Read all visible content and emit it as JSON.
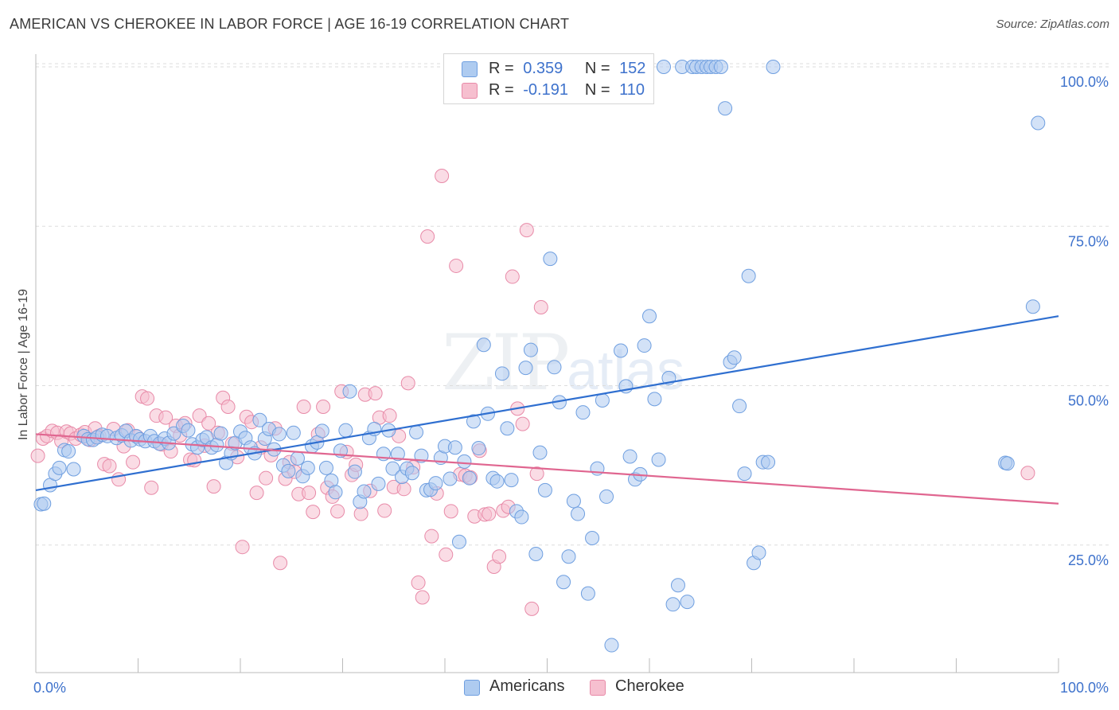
{
  "header": {
    "title": "AMERICAN VS CHEROKEE IN LABOR FORCE | AGE 16-19 CORRELATION CHART",
    "source": "Source: ZipAtlas.com"
  },
  "watermark": {
    "zip": "ZIP",
    "atlas": "atlas"
  },
  "legend": {
    "americans": {
      "r_label": "R =",
      "r_value": "0.359",
      "n_label": "N =",
      "n_value": "152"
    },
    "cherokee": {
      "r_label": "R =",
      "r_value": "-0.191",
      "n_label": "N =",
      "n_value": "110"
    }
  },
  "bottom_legend": {
    "americans": "Americans",
    "cherokee": "Cherokee"
  },
  "colors": {
    "americans_fill": "#aecbf0",
    "americans_stroke": "#6f9fe0",
    "americans_line": "#2f6fd0",
    "cherokee_fill": "#f6bfcf",
    "cherokee_stroke": "#e88aa8",
    "cherokee_line": "#e06690",
    "grid": "#dddddd",
    "axis_label": "#3e72cc"
  },
  "chart_data": {
    "type": "scatter",
    "title": "AMERICAN VS CHEROKEE IN LABOR FORCE | AGE 16-19 CORRELATION CHART",
    "xlabel": "",
    "ylabel": "In Labor Force | Age 16-19",
    "xlim": [
      0,
      100
    ],
    "ylim": [
      5,
      102
    ],
    "x_tick_labels": [
      "0.0%",
      "100.0%"
    ],
    "y_ticks": [
      25,
      50,
      75,
      100
    ],
    "y_tick_labels": [
      "25.0%",
      "50.0%",
      "75.0%",
      "100.0%"
    ],
    "grid": true,
    "legend_position": "top-center",
    "series": [
      {
        "name": "Americans",
        "r": 0.359,
        "n": 152,
        "trend": [
          [
            0,
            33.6
          ],
          [
            100,
            60.9
          ]
        ],
        "points": [
          [
            0.5,
            31.4
          ],
          [
            0.8,
            31.5
          ],
          [
            1.4,
            34.4
          ],
          [
            1.9,
            36.2
          ],
          [
            2.3,
            37.1
          ],
          [
            2.8,
            39.9
          ],
          [
            3.2,
            39.7
          ],
          [
            3.7,
            36.9
          ],
          [
            4.7,
            42.1
          ],
          [
            5.1,
            41.6
          ],
          [
            5.6,
            41.5
          ],
          [
            6.0,
            41.9
          ],
          [
            6.5,
            42.3
          ],
          [
            7.0,
            42.1
          ],
          [
            7.9,
            41.8
          ],
          [
            8.4,
            42.2
          ],
          [
            8.8,
            42.9
          ],
          [
            9.3,
            41.4
          ],
          [
            9.8,
            42.1
          ],
          [
            10.2,
            41.6
          ],
          [
            10.7,
            41.3
          ],
          [
            11.2,
            42.1
          ],
          [
            11.6,
            41.3
          ],
          [
            12.1,
            40.9
          ],
          [
            12.6,
            41.7
          ],
          [
            13.0,
            41.0
          ],
          [
            13.5,
            42.5
          ],
          [
            14.4,
            43.7
          ],
          [
            14.9,
            43.0
          ],
          [
            15.3,
            40.8
          ],
          [
            15.8,
            40.3
          ],
          [
            16.3,
            41.5
          ],
          [
            16.7,
            41.9
          ],
          [
            17.2,
            40.3
          ],
          [
            17.7,
            40.7
          ],
          [
            18.1,
            42.5
          ],
          [
            18.6,
            37.9
          ],
          [
            19.1,
            39.4
          ],
          [
            19.5,
            41.0
          ],
          [
            20.0,
            42.8
          ],
          [
            20.5,
            41.8
          ],
          [
            21.0,
            40.3
          ],
          [
            21.4,
            39.4
          ],
          [
            21.9,
            44.6
          ],
          [
            22.4,
            41.7
          ],
          [
            22.8,
            43.2
          ],
          [
            23.3,
            40.0
          ],
          [
            23.8,
            42.4
          ],
          [
            24.2,
            37.5
          ],
          [
            24.7,
            36.6
          ],
          [
            25.2,
            42.6
          ],
          [
            25.6,
            38.6
          ],
          [
            26.1,
            35.8
          ],
          [
            26.6,
            37.1
          ],
          [
            27.0,
            40.5
          ],
          [
            27.5,
            41.1
          ],
          [
            28.0,
            42.9
          ],
          [
            28.4,
            37.1
          ],
          [
            28.9,
            35.1
          ],
          [
            29.3,
            33.3
          ],
          [
            29.8,
            39.8
          ],
          [
            30.3,
            43.0
          ],
          [
            30.7,
            49.1
          ],
          [
            31.2,
            36.5
          ],
          [
            31.7,
            31.8
          ],
          [
            32.1,
            33.4
          ],
          [
            32.6,
            41.8
          ],
          [
            33.1,
            43.2
          ],
          [
            33.5,
            34.6
          ],
          [
            34.0,
            39.3
          ],
          [
            34.5,
            43.0
          ],
          [
            34.9,
            37.0
          ],
          [
            35.4,
            39.3
          ],
          [
            35.8,
            35.7
          ],
          [
            36.3,
            37.0
          ],
          [
            36.8,
            36.3
          ],
          [
            37.2,
            42.7
          ],
          [
            37.7,
            39.0
          ],
          [
            38.2,
            33.6
          ],
          [
            38.6,
            33.7
          ],
          [
            39.1,
            34.7
          ],
          [
            39.6,
            38.7
          ],
          [
            40.0,
            40.5
          ],
          [
            40.5,
            35.4
          ],
          [
            41.0,
            40.3
          ],
          [
            41.4,
            25.5
          ],
          [
            41.9,
            38.1
          ],
          [
            42.4,
            35.5
          ],
          [
            42.8,
            44.4
          ],
          [
            43.3,
            40.2
          ],
          [
            43.8,
            56.4
          ],
          [
            44.2,
            45.6
          ],
          [
            44.7,
            35.5
          ],
          [
            45.1,
            35.0
          ],
          [
            45.6,
            51.9
          ],
          [
            46.1,
            43.3
          ],
          [
            46.5,
            35.2
          ],
          [
            47.0,
            30.3
          ],
          [
            47.5,
            29.4
          ],
          [
            47.9,
            52.8
          ],
          [
            48.4,
            55.6
          ],
          [
            48.9,
            23.6
          ],
          [
            49.3,
            39.5
          ],
          [
            49.8,
            33.6
          ],
          [
            50.3,
            69.9
          ],
          [
            50.7,
            52.9
          ],
          [
            51.2,
            47.4
          ],
          [
            51.6,
            19.2
          ],
          [
            52.1,
            23.2
          ],
          [
            52.6,
            31.9
          ],
          [
            53.0,
            29.9
          ],
          [
            53.5,
            45.8
          ],
          [
            54.0,
            17.4
          ],
          [
            54.4,
            26.1
          ],
          [
            54.9,
            37.0
          ],
          [
            55.4,
            47.7
          ],
          [
            55.8,
            32.6
          ],
          [
            56.3,
            9.3
          ],
          [
            56.7,
            100.0
          ],
          [
            57.2,
            55.5
          ],
          [
            57.7,
            49.9
          ],
          [
            58.1,
            38.9
          ],
          [
            58.6,
            35.3
          ],
          [
            59.1,
            36.1
          ],
          [
            59.5,
            56.3
          ],
          [
            60.0,
            60.9
          ],
          [
            60.5,
            47.9
          ],
          [
            60.9,
            38.4
          ],
          [
            61.4,
            100.0
          ],
          [
            61.9,
            51.2
          ],
          [
            62.3,
            15.7
          ],
          [
            62.8,
            18.7
          ],
          [
            63.2,
            100.0
          ],
          [
            63.7,
            16.1
          ],
          [
            64.2,
            100.0
          ],
          [
            64.6,
            100.0
          ],
          [
            65.1,
            100.0
          ],
          [
            65.6,
            100.0
          ],
          [
            66.0,
            100.0
          ],
          [
            66.5,
            100.0
          ],
          [
            67.0,
            100.0
          ],
          [
            67.4,
            93.5
          ],
          [
            67.9,
            53.7
          ],
          [
            68.3,
            54.4
          ],
          [
            68.8,
            46.8
          ],
          [
            69.3,
            36.2
          ],
          [
            69.7,
            67.2
          ],
          [
            70.2,
            22.2
          ],
          [
            70.7,
            23.8
          ],
          [
            71.1,
            38.0
          ],
          [
            71.6,
            38.0
          ],
          [
            72.1,
            100.0
          ],
          [
            94.8,
            37.9
          ],
          [
            95.0,
            37.8
          ],
          [
            97.5,
            62.4
          ],
          [
            98.0,
            91.2
          ]
        ]
      },
      {
        "name": "Cherokee",
        "r": -0.191,
        "n": 110,
        "trend": [
          [
            0,
            42.4
          ],
          [
            100,
            31.5
          ]
        ],
        "points": [
          [
            0.2,
            39.0
          ],
          [
            0.7,
            41.7
          ],
          [
            1.1,
            42.1
          ],
          [
            1.6,
            42.9
          ],
          [
            2.1,
            42.6
          ],
          [
            2.5,
            41.3
          ],
          [
            3.0,
            42.8
          ],
          [
            3.4,
            42.5
          ],
          [
            3.9,
            41.7
          ],
          [
            4.4,
            42.3
          ],
          [
            4.8,
            42.7
          ],
          [
            5.3,
            41.5
          ],
          [
            5.8,
            43.3
          ],
          [
            6.2,
            42.1
          ],
          [
            6.7,
            37.7
          ],
          [
            7.2,
            37.4
          ],
          [
            7.6,
            43.2
          ],
          [
            8.1,
            35.3
          ],
          [
            8.6,
            40.5
          ],
          [
            9.0,
            43.0
          ],
          [
            9.5,
            38.0
          ],
          [
            9.9,
            42.0
          ],
          [
            10.4,
            48.3
          ],
          [
            10.9,
            48.0
          ],
          [
            11.3,
            34.0
          ],
          [
            11.8,
            45.3
          ],
          [
            12.3,
            40.8
          ],
          [
            12.7,
            45.0
          ],
          [
            13.2,
            39.7
          ],
          [
            13.7,
            43.7
          ],
          [
            14.1,
            42.2
          ],
          [
            14.6,
            44.1
          ],
          [
            15.1,
            38.4
          ],
          [
            15.5,
            38.3
          ],
          [
            16.0,
            45.3
          ],
          [
            16.5,
            40.6
          ],
          [
            16.9,
            44.1
          ],
          [
            17.4,
            34.2
          ],
          [
            17.8,
            42.6
          ],
          [
            18.3,
            48.1
          ],
          [
            18.8,
            46.7
          ],
          [
            19.2,
            40.9
          ],
          [
            19.7,
            38.8
          ],
          [
            20.2,
            24.7
          ],
          [
            20.6,
            45.1
          ],
          [
            21.1,
            44.3
          ],
          [
            21.6,
            33.2
          ],
          [
            22.0,
            40.3
          ],
          [
            22.5,
            35.5
          ],
          [
            23.0,
            39.1
          ],
          [
            23.4,
            43.3
          ],
          [
            23.9,
            22.2
          ],
          [
            24.4,
            35.4
          ],
          [
            24.8,
            38.0
          ],
          [
            25.3,
            36.5
          ],
          [
            25.7,
            33.0
          ],
          [
            26.2,
            46.7
          ],
          [
            26.7,
            33.2
          ],
          [
            27.1,
            30.2
          ],
          [
            27.6,
            42.4
          ],
          [
            28.1,
            46.7
          ],
          [
            28.5,
            34.0
          ],
          [
            29.0,
            32.6
          ],
          [
            29.5,
            30.3
          ],
          [
            29.9,
            49.1
          ],
          [
            30.4,
            39.6
          ],
          [
            30.9,
            36.0
          ],
          [
            31.3,
            37.6
          ],
          [
            31.8,
            29.9
          ],
          [
            32.2,
            48.6
          ],
          [
            32.7,
            33.5
          ],
          [
            33.2,
            48.8
          ],
          [
            33.6,
            45.0
          ],
          [
            34.1,
            30.4
          ],
          [
            34.6,
            45.3
          ],
          [
            35.0,
            34.1
          ],
          [
            35.5,
            42.1
          ],
          [
            36.0,
            33.8
          ],
          [
            36.4,
            50.4
          ],
          [
            36.9,
            37.2
          ],
          [
            37.4,
            19.1
          ],
          [
            37.8,
            16.8
          ],
          [
            38.3,
            73.4
          ],
          [
            38.7,
            26.4
          ],
          [
            39.2,
            33.1
          ],
          [
            39.7,
            82.9
          ],
          [
            40.1,
            23.5
          ],
          [
            40.6,
            30.3
          ],
          [
            41.1,
            68.8
          ],
          [
            41.5,
            36.1
          ],
          [
            42.0,
            35.9
          ],
          [
            42.5,
            35.6
          ],
          [
            42.9,
            29.5
          ],
          [
            43.4,
            39.8
          ],
          [
            43.9,
            29.8
          ],
          [
            44.3,
            29.9
          ],
          [
            44.8,
            21.6
          ],
          [
            45.3,
            23.2
          ],
          [
            45.7,
            30.4
          ],
          [
            46.2,
            31.0
          ],
          [
            46.6,
            67.1
          ],
          [
            47.1,
            46.4
          ],
          [
            47.6,
            44.0
          ],
          [
            48.0,
            74.4
          ],
          [
            48.5,
            15.0
          ],
          [
            49.0,
            36.2
          ],
          [
            49.4,
            62.3
          ],
          [
            97.0,
            36.3
          ]
        ]
      }
    ]
  }
}
